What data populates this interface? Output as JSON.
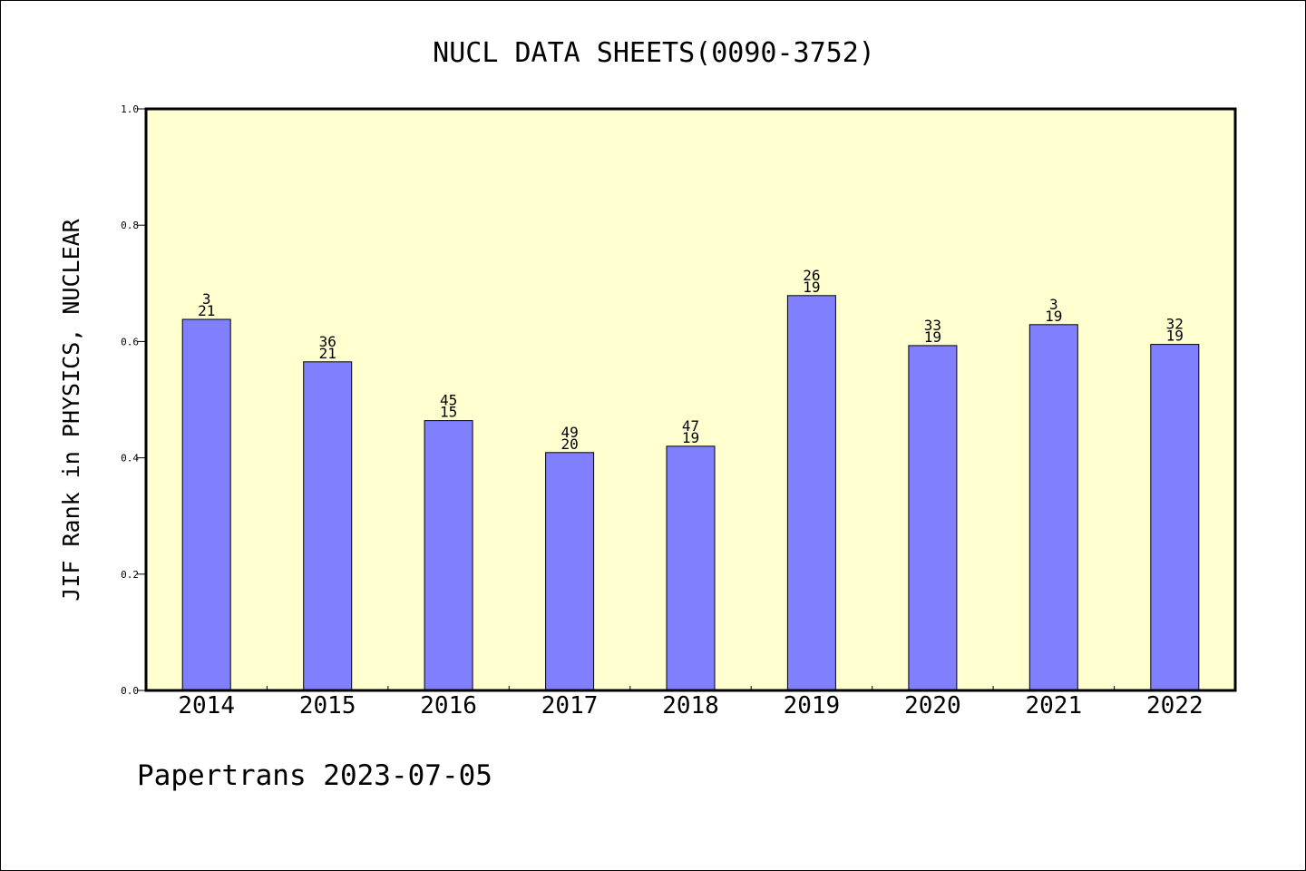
{
  "chart_data": {
    "type": "bar",
    "title": "NUCL DATA SHEETS(0090-3752)",
    "ylabel": "JIF Rank in PHYSICS, NUCLEAR",
    "xlabel": "",
    "categories": [
      "2014",
      "2015",
      "2016",
      "2017",
      "2018",
      "2019",
      "2020",
      "2021",
      "2022"
    ],
    "values": [
      0.638,
      0.565,
      0.464,
      0.409,
      0.42,
      0.679,
      0.593,
      0.629,
      0.595
    ],
    "bar_labels": [
      [
        "3",
        "21"
      ],
      [
        "36",
        "21"
      ],
      [
        "45",
        "15"
      ],
      [
        "49",
        "20"
      ],
      [
        "47",
        "19"
      ],
      [
        "26",
        "19"
      ],
      [
        "33",
        "19"
      ],
      [
        "3",
        "19"
      ],
      [
        "32",
        "19"
      ]
    ],
    "ylim": [
      0.0,
      1.0
    ],
    "yticks": [
      0.0,
      0.2,
      0.4,
      0.6,
      0.8,
      1.0
    ],
    "ytick_labels": [
      "0.0",
      "0.2",
      "0.4",
      "0.6",
      "0.8",
      "1.0"
    ],
    "grid": false,
    "legend": "none",
    "colors": {
      "bar": "#8080ff",
      "plot_background": "#ffffd0",
      "axis": "#000000"
    }
  },
  "footer": "Papertrans 2023-07-05"
}
